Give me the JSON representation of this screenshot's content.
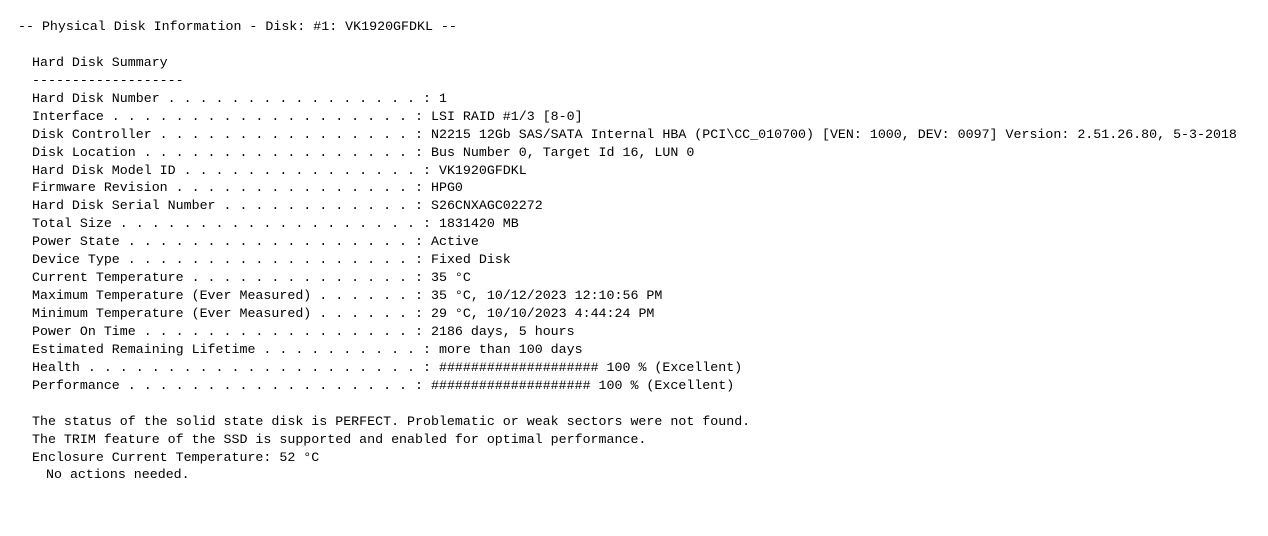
{
  "header": {
    "title_prefix": "-- Physical Disk Information - Disk: #",
    "disk_index": "1",
    "title_mid": ": ",
    "disk_model": "VK1920GFDKL",
    "title_suffix": " --"
  },
  "section_title": "Hard Disk Summary",
  "section_underline": "-------------------",
  "rows": [
    {
      "label": "Hard Disk Number . . . . . . . . . . . . . . . . :",
      "value": "1"
    },
    {
      "label": "Interface  . . . . . . . . . . . . . . . . . . . :",
      "value": "LSI  RAID #1/3 [8-0]"
    },
    {
      "label": "Disk Controller  . . . . . . . . . . . . . . . . :",
      "value": "N2215 12Gb SAS/SATA Internal HBA (PCI\\CC_010700) [VEN: 1000, DEV: 0097] Version: 2.51.26.80, 5-3-2018"
    },
    {
      "label": "Disk Location  . . . . . . . . . . . . . . . . . :",
      "value": "Bus Number 0, Target Id 16, LUN 0"
    },
    {
      "label": "Hard Disk Model ID . . . . . . . . . . . . . . . :",
      "value": "VK1920GFDKL"
    },
    {
      "label": "Firmware Revision  . . . . . . . . . . . . . . . :",
      "value": "HPG0"
    },
    {
      "label": "Hard Disk Serial Number  . . . . . . . . . . . . :",
      "value": "S26CNXAGC02272"
    },
    {
      "label": "Total Size . . . . . . . . . . . . . . . . . . . :",
      "value": "1831420 MB"
    },
    {
      "label": "Power State  . . . . . . . . . . . . . . . . . . :",
      "value": "Active"
    },
    {
      "label": "Device Type  . . . . . . . . . . . . . . . . . . :",
      "value": "Fixed Disk"
    },
    {
      "label": "Current Temperature  . . . . . . . . . . . . . . :",
      "value": "35 °C"
    },
    {
      "label": "Maximum Temperature (Ever Measured)  . . . . . . :",
      "value": "35 °C, 10/12/2023 12:10:56 PM"
    },
    {
      "label": "Minimum Temperature (Ever Measured)  . . . . . . :",
      "value": "29 °C, 10/10/2023 4:44:24 PM"
    },
    {
      "label": "Power On Time  . . . . . . . . . . . . . . . . . :",
      "value": "2186 days, 5 hours"
    },
    {
      "label": "Estimated Remaining Lifetime . . . . . . . . . . :",
      "value": "more than 100 days"
    },
    {
      "label": "Health . . . . . . . . . . . . . . . . . . . . . :",
      "value": "#################### 100 % (Excellent)"
    },
    {
      "label": "Performance  . . . . . . . . . . . . . . . . . . :",
      "value": "#################### 100 % (Excellent)"
    }
  ],
  "footer": {
    "line1": "The status of the solid state disk is PERFECT. Problematic or weak sectors were not found.",
    "line2": "The TRIM feature of the SSD is supported and enabled for optimal performance.",
    "line3": "Enclosure Current Temperature: 52 °C",
    "line4": "No actions needed."
  }
}
